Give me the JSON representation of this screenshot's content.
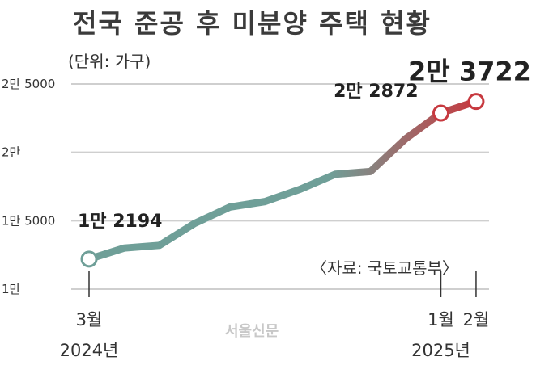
{
  "header": {
    "title": "전국 준공 후 미분양 주택 현황",
    "unit": "(단위: 가구)",
    "source": "〈자료: 국토교통부〉",
    "watermark": "서울신문"
  },
  "colors": {
    "line_start": "#6f9f98",
    "line_end": "#c7393f",
    "grid": "#cfcfcf",
    "marker_fill": "#ffffff"
  },
  "chart_data": {
    "type": "line",
    "title": "전국 준공 후 미분양 주택 현황",
    "unit": "가구",
    "x": [
      "2024-03",
      "2024-04",
      "2024-05",
      "2024-06",
      "2024-07",
      "2024-08",
      "2024-09",
      "2024-10",
      "2024-11",
      "2024-12",
      "2025-01",
      "2025-02"
    ],
    "y": [
      12194,
      13000,
      13200,
      14800,
      16000,
      16400,
      17300,
      18400,
      18600,
      21000,
      22872,
      23722
    ],
    "ylim": [
      10000,
      25000
    ],
    "yticks": [
      {
        "value": 10000,
        "label": "1만"
      },
      {
        "value": 15000,
        "label": "1만 5000"
      },
      {
        "value": 20000,
        "label": "2만"
      },
      {
        "value": 25000,
        "label": "2만 5000"
      }
    ],
    "xticks": [
      {
        "index": 0,
        "label": "3월",
        "sublabel": "2024년"
      },
      {
        "index": 10,
        "label": "1월",
        "sublabel": "2025년"
      },
      {
        "index": 11,
        "label": "2월",
        "sublabel": ""
      }
    ],
    "highlight_points": [
      {
        "index": 0,
        "label": "1만 2194"
      },
      {
        "index": 10,
        "label": "2만 2872"
      },
      {
        "index": 11,
        "label": "2만 3722"
      }
    ],
    "grid": true
  }
}
